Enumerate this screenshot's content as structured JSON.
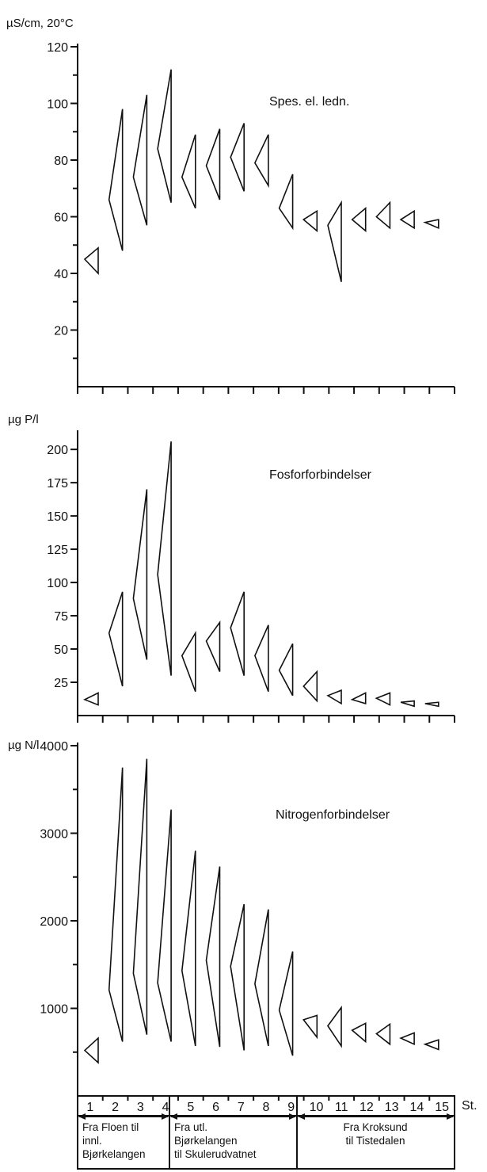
{
  "chart_data": [
    {
      "type": "range-triangles",
      "id": "conductivity",
      "title": "Spes. el. ledn.",
      "ylabel": "µS/cm, 20°C",
      "ylim": [
        0,
        120
      ],
      "yticks": [
        20,
        40,
        60,
        80,
        100,
        120
      ],
      "minor_yticks": [
        10,
        30,
        50,
        70,
        90,
        110
      ],
      "stations": [
        "1",
        "2",
        "3",
        "4",
        "5",
        "6",
        "7",
        "8",
        "9",
        "10",
        "11",
        "12",
        "13",
        "14",
        "15"
      ],
      "min": [
        40,
        48,
        57,
        65,
        63,
        66,
        69,
        71,
        56,
        55,
        37,
        55,
        56,
        56,
        56
      ],
      "mean": [
        45,
        66,
        74,
        84,
        74,
        78,
        81,
        79,
        63,
        59,
        57,
        59,
        60,
        59,
        58
      ],
      "max": [
        49,
        98,
        103,
        112,
        89,
        91,
        93,
        89,
        75,
        62,
        65,
        63,
        65,
        62,
        59
      ]
    },
    {
      "type": "range-triangles",
      "id": "phosphorus",
      "title": "Fosforforbindelser",
      "ylabel": "µg P/l",
      "ylim": [
        0,
        212
      ],
      "yticks": [
        25,
        50,
        75,
        100,
        125,
        150,
        175,
        200
      ],
      "minor_yticks": [],
      "stations": [
        "1",
        "2",
        "3",
        "4",
        "5",
        "6",
        "7",
        "8",
        "9",
        "10",
        "11",
        "12",
        "13",
        "14",
        "15"
      ],
      "min": [
        8,
        22,
        42,
        30,
        18,
        33,
        30,
        18,
        15,
        11,
        9,
        9,
        8,
        7,
        7
      ],
      "mean": [
        12,
        62,
        88,
        106,
        45,
        56,
        66,
        45,
        34,
        22,
        15,
        12,
        13,
        10,
        9
      ],
      "max": [
        17,
        93,
        170,
        206,
        62,
        70,
        93,
        68,
        54,
        33,
        19,
        17,
        17,
        11,
        10
      ]
    },
    {
      "type": "range-triangles",
      "id": "nitrogen",
      "title": "Nitrogenforbindelser",
      "ylabel": "µg N/l",
      "ylim": [
        0,
        4000
      ],
      "yticks": [
        1000,
        2000,
        3000,
        4000
      ],
      "minor_yticks": [
        500,
        1500,
        2500,
        3500
      ],
      "stations": [
        "1",
        "2",
        "3",
        "4",
        "5",
        "6",
        "7",
        "8",
        "9",
        "10",
        "11",
        "12",
        "13",
        "14",
        "15"
      ],
      "min": [
        380,
        620,
        700,
        620,
        570,
        560,
        520,
        570,
        460,
        670,
        570,
        620,
        590,
        590,
        530
      ],
      "mean": [
        520,
        1210,
        1400,
        1290,
        1430,
        1550,
        1480,
        1280,
        980,
        870,
        800,
        750,
        710,
        660,
        590
      ],
      "max": [
        660,
        3750,
        3850,
        3270,
        2800,
        2620,
        2190,
        2130,
        1650,
        920,
        1010,
        830,
        820,
        720,
        640
      ]
    }
  ],
  "station_axis": {
    "numbers": [
      "1",
      "2",
      "3",
      "4",
      "5",
      "6",
      "7",
      "8",
      "9",
      "10",
      "11",
      "12",
      "13",
      "14",
      "15"
    ],
    "suffix": "St.",
    "sections": [
      {
        "lines": [
          "Fra Floen til",
          "innl.",
          "Bjørkelangen"
        ]
      },
      {
        "lines": [
          "Fra utl.",
          "Bjørkelangen",
          "til Skulerudvatnet"
        ]
      },
      {
        "lines": [
          "Fra Kroksund",
          "til Tistedalen"
        ]
      }
    ]
  }
}
